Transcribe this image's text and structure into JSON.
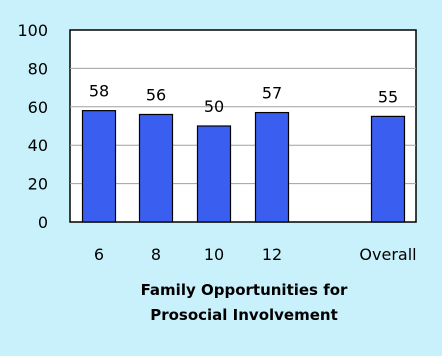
{
  "chart_data": {
    "type": "bar",
    "categories": [
      "6",
      "8",
      "10",
      "12",
      "Overall"
    ],
    "values": [
      58,
      56,
      50,
      57,
      55
    ],
    "data_labels": [
      "58",
      "56",
      "50",
      "57",
      "55"
    ],
    "title": "",
    "xlabel": "Family Opportunities for Prosocial Involvement",
    "xlabel_lines": [
      "Family Opportunities for",
      "Prosocial Involvement"
    ],
    "ylabel": "",
    "ylim": [
      0,
      100
    ],
    "yticks": [
      "0",
      "20",
      "40",
      "60",
      "80",
      "100"
    ],
    "grid": true,
    "legend": "none",
    "colors": {
      "bar": "#3a5ff0",
      "bar_stroke": "#000000",
      "plot_bg": "#ffffff",
      "page_bg": "#c9f1fb",
      "grid": "#a0a0a0"
    }
  }
}
